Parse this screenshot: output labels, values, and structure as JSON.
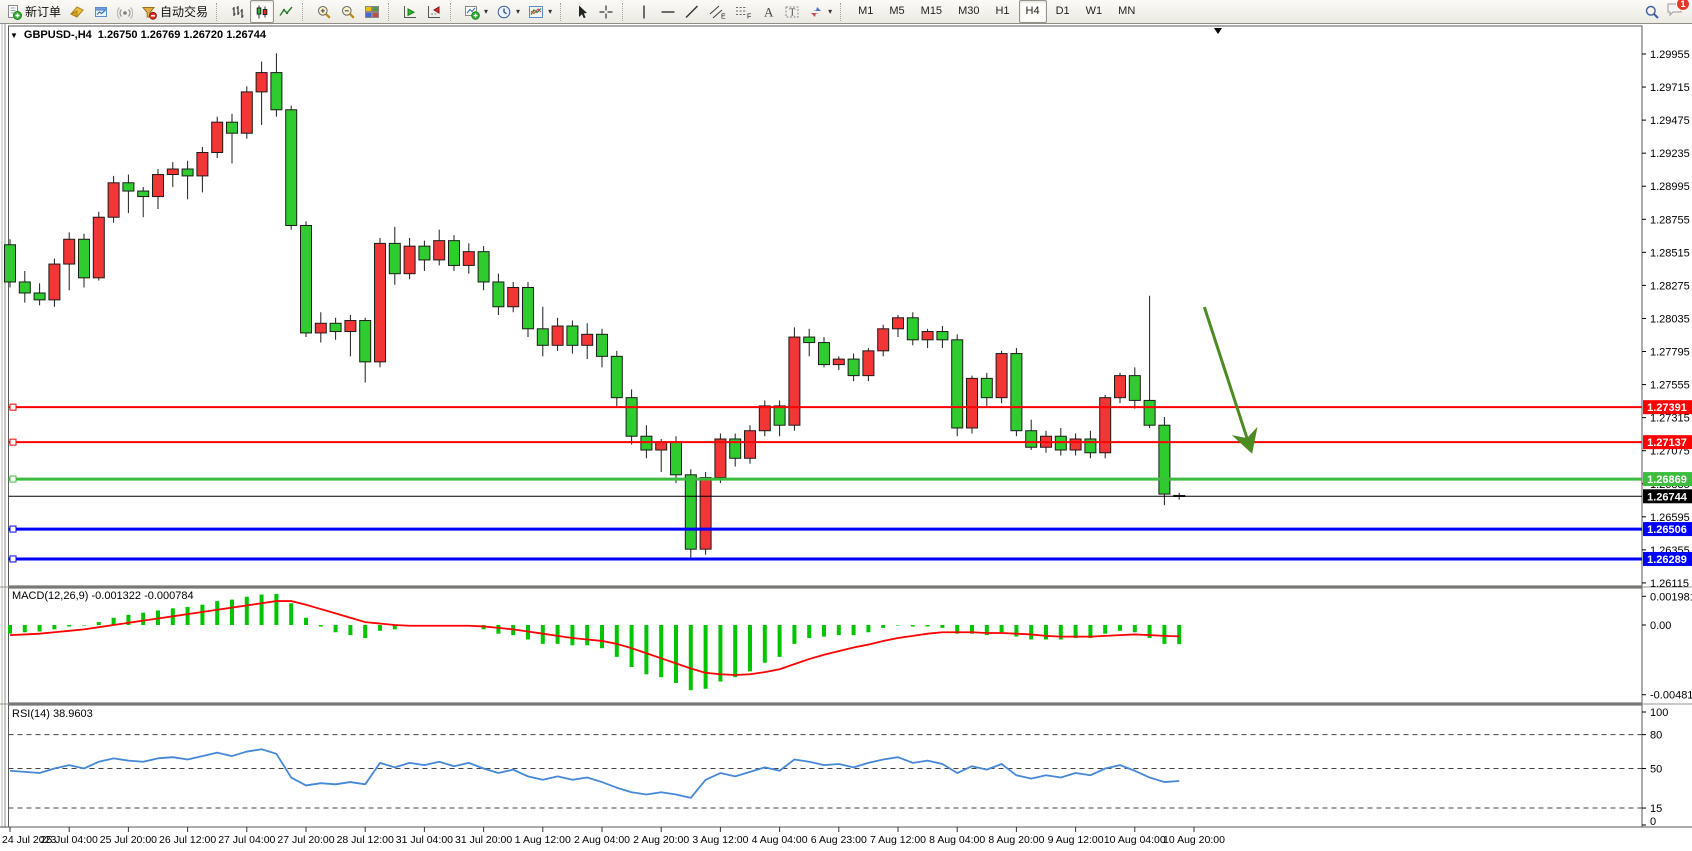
{
  "toolbar": {
    "new_order_label": "新订单",
    "auto_trading_label": "自动交易",
    "timeframes": [
      "M1",
      "M5",
      "M15",
      "M30",
      "H1",
      "H4",
      "D1",
      "W1",
      "MN"
    ],
    "active_timeframe": "H4",
    "notification_count": "1"
  },
  "chart": {
    "title": "GBPUSD-,H4",
    "quote_line": "1.26750 1.26769 1.26720 1.26744"
  },
  "chart_data": {
    "type": "candlestick",
    "symbol": "GBPUSD-",
    "timeframe": "H4",
    "colors": {
      "bull": "#f23535",
      "bear": "#2fcc2f",
      "outline": "#1c1c1c",
      "line_red": "#ff0000",
      "line_green": "#3dbd3d",
      "line_blue": "#0000ff",
      "current": "#000000",
      "macd_bar": "#00c400",
      "macd_signal": "#ff0000",
      "rsi_line": "#4688d7",
      "arrow": "#4c8a22"
    },
    "y_axis": {
      "ticks": [
        "1.29955",
        "1.29715",
        "1.29475",
        "1.29235",
        "1.28995",
        "1.28755",
        "1.28515",
        "1.28275",
        "1.28035",
        "1.27795",
        "1.27555",
        "1.27315",
        "1.27075",
        "1.26835",
        "1.26595",
        "1.26355",
        "1.26115"
      ],
      "top_price": 1.29955,
      "tick_step": 0.0024
    },
    "x_axis": {
      "labels": [
        "24 Jul 2023",
        "25 Jul 04:00",
        "25 Jul 20:00",
        "26 Jul 12:00",
        "27 Jul 04:00",
        "27 Jul 20:00",
        "28 Jul 12:00",
        "31 Jul 04:00",
        "31 Jul 20:00",
        "1 Aug 12:00",
        "2 Aug 04:00",
        "2 Aug 20:00",
        "3 Aug 12:00",
        "4 Aug 04:00",
        "6 Aug 23:00",
        "7 Aug 12:00",
        "8 Aug 04:00",
        "8 Aug 20:00",
        "9 Aug 12:00",
        "10 Aug 04:00",
        "10 Aug 20:00"
      ],
      "bars_per_label": 4
    },
    "candles": [
      [
        1.2857,
        1.2861,
        1.2826,
        1.283
      ],
      [
        1.283,
        1.2838,
        1.2815,
        1.2822
      ],
      [
        1.2822,
        1.2829,
        1.2813,
        1.2817
      ],
      [
        1.2817,
        1.2847,
        1.2812,
        1.2843
      ],
      [
        1.2843,
        1.2866,
        1.2824,
        1.2861
      ],
      [
        1.2861,
        1.2865,
        1.2826,
        1.2833
      ],
      [
        1.2833,
        1.2881,
        1.2831,
        1.2877
      ],
      [
        1.2877,
        1.2907,
        1.2873,
        1.2902
      ],
      [
        1.2902,
        1.2908,
        1.288,
        1.2896
      ],
      [
        1.2896,
        1.2899,
        1.2877,
        1.2892
      ],
      [
        1.2892,
        1.2912,
        1.2883,
        1.2908
      ],
      [
        1.2908,
        1.2917,
        1.2899,
        1.2912
      ],
      [
        1.2912,
        1.2918,
        1.289,
        1.2907
      ],
      [
        1.2907,
        1.2928,
        1.2895,
        1.2924
      ],
      [
        1.2924,
        1.295,
        1.292,
        1.2946
      ],
      [
        1.2946,
        1.2952,
        1.2916,
        1.2938
      ],
      [
        1.2938,
        1.2972,
        1.2934,
        1.2968
      ],
      [
        1.2968,
        1.299,
        1.2944,
        1.2982
      ],
      [
        1.2982,
        1.2996,
        1.295,
        1.2955
      ],
      [
        1.2955,
        1.2958,
        1.2868,
        1.2871
      ],
      [
        1.2871,
        1.2874,
        1.279,
        1.2793
      ],
      [
        1.2793,
        1.2808,
        1.2786,
        1.28
      ],
      [
        1.28,
        1.2804,
        1.2788,
        1.2794
      ],
      [
        1.2794,
        1.2806,
        1.2776,
        1.2802
      ],
      [
        1.2802,
        1.2804,
        1.2757,
        1.2772
      ],
      [
        1.2772,
        1.2862,
        1.2768,
        1.2858
      ],
      [
        1.2858,
        1.287,
        1.2828,
        1.2836
      ],
      [
        1.2836,
        1.2862,
        1.2832,
        1.2856
      ],
      [
        1.2856,
        1.286,
        1.2838,
        1.2846
      ],
      [
        1.2846,
        1.2868,
        1.2842,
        1.286
      ],
      [
        1.286,
        1.2864,
        1.2838,
        1.2842
      ],
      [
        1.2842,
        1.2858,
        1.2836,
        1.2852
      ],
      [
        1.2852,
        1.2856,
        1.2824,
        1.283
      ],
      [
        1.283,
        1.2836,
        1.2806,
        1.2812
      ],
      [
        1.2812,
        1.283,
        1.2808,
        1.2826
      ],
      [
        1.2826,
        1.283,
        1.279,
        1.2796
      ],
      [
        1.2796,
        1.2812,
        1.2776,
        1.2784
      ],
      [
        1.2784,
        1.2804,
        1.278,
        1.2798
      ],
      [
        1.2798,
        1.2802,
        1.2778,
        1.2784
      ],
      [
        1.2784,
        1.28,
        1.2774,
        1.2792
      ],
      [
        1.2792,
        1.2796,
        1.2768,
        1.2776
      ],
      [
        1.2776,
        1.278,
        1.274,
        1.2746
      ],
      [
        1.2746,
        1.2752,
        1.2712,
        1.2718
      ],
      [
        1.2718,
        1.2726,
        1.2702,
        1.2708
      ],
      [
        1.2708,
        1.2716,
        1.2692,
        1.2714
      ],
      [
        1.2714,
        1.2718,
        1.2684,
        1.269
      ],
      [
        1.269,
        1.2694,
        1.2629,
        1.2636
      ],
      [
        1.2636,
        1.2692,
        1.2632,
        1.2688
      ],
      [
        1.2688,
        1.272,
        1.2684,
        1.2716
      ],
      [
        1.2716,
        1.272,
        1.2696,
        1.2702
      ],
      [
        1.2702,
        1.2726,
        1.2698,
        1.2722
      ],
      [
        1.2722,
        1.2744,
        1.2718,
        1.274
      ],
      [
        1.274,
        1.2744,
        1.2718,
        1.2726
      ],
      [
        1.2726,
        1.2797,
        1.2722,
        1.279
      ],
      [
        1.279,
        1.2796,
        1.2776,
        1.2786
      ],
      [
        1.2786,
        1.279,
        1.2768,
        1.277
      ],
      [
        1.277,
        1.2776,
        1.2766,
        1.2774
      ],
      [
        1.2774,
        1.2778,
        1.2758,
        1.2762
      ],
      [
        1.2762,
        1.2782,
        1.2758,
        1.278
      ],
      [
        1.278,
        1.2799,
        1.2776,
        1.2796
      ],
      [
        1.2796,
        1.2806,
        1.279,
        1.2804
      ],
      [
        1.2804,
        1.2808,
        1.2784,
        1.2788
      ],
      [
        1.2788,
        1.2796,
        1.2782,
        1.2794
      ],
      [
        1.2794,
        1.2798,
        1.2782,
        1.2788
      ],
      [
        1.2788,
        1.2792,
        1.2718,
        1.2724
      ],
      [
        1.2724,
        1.2762,
        1.272,
        1.276
      ],
      [
        1.276,
        1.2764,
        1.274,
        1.2746
      ],
      [
        1.2746,
        1.278,
        1.2742,
        1.2778
      ],
      [
        1.2778,
        1.2782,
        1.2718,
        1.2722
      ],
      [
        1.2722,
        1.273,
        1.2708,
        1.271
      ],
      [
        1.271,
        1.2722,
        1.2706,
        1.2718
      ],
      [
        1.2718,
        1.2724,
        1.2704,
        1.2708
      ],
      [
        1.2708,
        1.272,
        1.2704,
        1.2716
      ],
      [
        1.2716,
        1.2722,
        1.2702,
        1.2706
      ],
      [
        1.2706,
        1.2748,
        1.2702,
        1.2746
      ],
      [
        1.2746,
        1.2764,
        1.2742,
        1.2762
      ],
      [
        1.2762,
        1.2768,
        1.2738,
        1.2744
      ],
      [
        1.2744,
        1.282,
        1.2724,
        1.2726
      ],
      [
        1.2726,
        1.2732,
        1.2668,
        1.2676
      ],
      [
        1.2675,
        1.26769,
        1.2672,
        1.26744
      ]
    ],
    "hlines": [
      {
        "price": 1.27391,
        "label": "1.27391",
        "color": "#ff0000",
        "width": 2
      },
      {
        "price": 1.27137,
        "label": "1.27137",
        "color": "#ff0000",
        "width": 2
      },
      {
        "price": 1.26869,
        "label": "1.26869",
        "color": "#3dbd3d",
        "width": 3
      },
      {
        "price": 1.26506,
        "label": "1.26506",
        "color": "#0000ff",
        "width": 3
      },
      {
        "price": 1.26289,
        "label": "1.26289",
        "color": "#0000ff",
        "width": 3
      }
    ],
    "current_price": {
      "value": 1.26744,
      "label": "1.26744"
    },
    "annotations": [
      {
        "type": "arrow",
        "from_bar": 80.7,
        "from_price": 1.28118,
        "to_bar": 83.8,
        "to_price": 1.27094
      }
    ],
    "macd": {
      "name": "MACD(12,26,9)",
      "main_value": "-0.001322",
      "signal_value": "-0.000784",
      "axis": [
        "0.001981",
        "0.00",
        "-0.00481"
      ],
      "main": [
        -0.0006,
        -0.0005,
        -0.00045,
        -0.0003,
        -0.0001,
        0,
        0.0002,
        0.0005,
        0.0007,
        0.00085,
        0.001,
        0.00115,
        0.00125,
        0.0014,
        0.00165,
        0.00175,
        0.00195,
        0.0021,
        0.00215,
        0.0015,
        0.0005,
        -0.0001,
        -0.0005,
        -0.0007,
        -0.0009,
        -0.0004,
        -0.0003,
        -0.0001,
        -0.0001,
        0,
        -0.0001,
        -0.0001,
        -0.0003,
        -0.0006,
        -0.0007,
        -0.001,
        -0.0013,
        -0.0013,
        -0.0014,
        -0.0014,
        -0.0016,
        -0.0022,
        -0.0029,
        -0.0034,
        -0.0036,
        -0.004,
        -0.0045,
        -0.0044,
        -0.0039,
        -0.0036,
        -0.0032,
        -0.0026,
        -0.0022,
        -0.0013,
        -0.0009,
        -0.0008,
        -0.0007,
        -0.0007,
        -0.0005,
        -0.0002,
        0,
        -0.0001,
        -0.0001,
        -0.0002,
        -0.0006,
        -0.0006,
        -0.0007,
        -0.0005,
        -0.0008,
        -0.001,
        -0.001,
        -0.001,
        -0.0009,
        -0.0009,
        -0.0006,
        -0.0004,
        -0.0005,
        -0.0009,
        -0.0013,
        -0.001322
      ],
      "signal": [
        -0.0007,
        -0.00065,
        -0.0006,
        -0.0005,
        -0.0004,
        -0.0003,
        -0.00015,
        0,
        0.00015,
        0.0003,
        0.00045,
        0.0006,
        0.00075,
        0.0009,
        0.00105,
        0.0012,
        0.00135,
        0.0015,
        0.00165,
        0.00165,
        0.0014,
        0.0011,
        0.0008,
        0.0005,
        0.0002,
        0.0001,
        0,
        -5e-05,
        -5e-05,
        -5e-05,
        -5e-05,
        -5e-05,
        -0.0001,
        -0.0002,
        -0.0003,
        -0.00045,
        -0.0006,
        -0.00075,
        -0.0009,
        -0.001,
        -0.0011,
        -0.0013,
        -0.0016,
        -0.00195,
        -0.0023,
        -0.00265,
        -0.003,
        -0.0033,
        -0.0034,
        -0.00345,
        -0.0034,
        -0.00325,
        -0.00305,
        -0.0027,
        -0.00235,
        -0.00205,
        -0.0018,
        -0.00155,
        -0.00135,
        -0.0011,
        -0.0009,
        -0.00075,
        -0.0006,
        -0.0005,
        -0.0005,
        -0.0005,
        -0.00055,
        -0.00055,
        -0.0006,
        -0.00065,
        -0.00075,
        -0.0008,
        -0.0008,
        -0.0008,
        -0.00075,
        -0.0007,
        -0.00065,
        -0.0007,
        -0.00075,
        -0.000784
      ]
    },
    "rsi": {
      "name": "RSI(14)",
      "value": "38.9603",
      "axis": [
        "100",
        "80",
        "50",
        "15",
        "0"
      ],
      "levels": [
        80,
        50,
        15
      ],
      "values": [
        48,
        47,
        46,
        50,
        53,
        50,
        56,
        59,
        57,
        56,
        59,
        60,
        58,
        61,
        64,
        61,
        65,
        67,
        63,
        42,
        35,
        37,
        36,
        38,
        36,
        55,
        51,
        55,
        53,
        56,
        52,
        55,
        50,
        46,
        49,
        43,
        40,
        43,
        40,
        42,
        38,
        33,
        29,
        27,
        29,
        27,
        24,
        40,
        46,
        43,
        47,
        51,
        48,
        58,
        56,
        53,
        54,
        51,
        55,
        58,
        60,
        55,
        57,
        54,
        46,
        52,
        49,
        54,
        44,
        41,
        44,
        42,
        46,
        44,
        50,
        53,
        48,
        42,
        38,
        38.96
      ]
    }
  }
}
